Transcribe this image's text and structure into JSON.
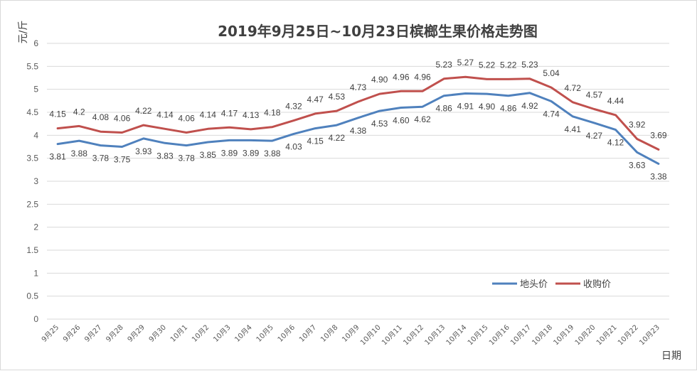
{
  "chart_data": {
    "type": "line",
    "title": "2019年9月25日~10月23日槟榔生果价格走势图",
    "ylabel": "元/斤",
    "xlabel": "日期",
    "ylim": [
      0,
      6
    ],
    "yticks": [
      "0",
      "0.5",
      "1",
      "1.5",
      "2",
      "2.5",
      "3",
      "3.5",
      "4",
      "4.5",
      "5",
      "5.5",
      "6"
    ],
    "categories": [
      "9月25",
      "9月26",
      "9月27",
      "9月28",
      "9月29",
      "9月30",
      "10月1",
      "10月2",
      "10月3",
      "10月4",
      "10月5",
      "10月6",
      "10月7",
      "10月8",
      "10月9",
      "10月10",
      "10月11",
      "10月12",
      "10月13",
      "10月14",
      "10月15",
      "10月16",
      "10月17",
      "10月18",
      "10月19",
      "10月20",
      "10月21",
      "10月22",
      "10月23"
    ],
    "series": [
      {
        "name": "地头价",
        "color": "#4f81bd",
        "values": [
          3.81,
          3.88,
          3.78,
          3.75,
          3.93,
          3.83,
          3.78,
          3.85,
          3.89,
          3.89,
          3.88,
          4.03,
          4.15,
          4.22,
          4.38,
          4.53,
          4.6,
          4.62,
          4.86,
          4.91,
          4.9,
          4.86,
          4.92,
          4.74,
          4.41,
          4.27,
          4.12,
          3.63,
          3.38
        ],
        "labels": [
          "3.81",
          "3.88",
          "3.78",
          "3.75",
          "3.93",
          "3.83",
          "3.78",
          "3.85",
          "3.89",
          "3.89",
          "3.88",
          "4.03",
          "4.15",
          "4.22",
          "4.38",
          "4.53",
          "4.60",
          "4.62",
          "4.86",
          "4.91",
          "4.90",
          "4.86",
          "4.92",
          "4.74",
          "4.41",
          "4.27",
          "4.12",
          "3.63",
          "3.38"
        ]
      },
      {
        "name": "收购价",
        "color": "#c0504d",
        "values": [
          4.15,
          4.2,
          4.08,
          4.06,
          4.22,
          4.14,
          4.06,
          4.14,
          4.17,
          4.13,
          4.18,
          4.32,
          4.47,
          4.53,
          4.73,
          4.9,
          4.96,
          4.96,
          5.23,
          5.27,
          5.22,
          5.22,
          5.23,
          5.04,
          4.72,
          4.57,
          4.44,
          3.92,
          3.69
        ],
        "labels": [
          "4.15",
          "4.2",
          "4.08",
          "4.06",
          "4.22",
          "4.14",
          "4.06",
          "4.14",
          "4.17",
          "4.13",
          "4.18",
          "4.32",
          "4.47",
          "4.53",
          "4.73",
          "4.90",
          "4.96",
          "4.96",
          "5.23",
          "5.27",
          "5.22",
          "5.22",
          "5.23",
          "5.04",
          "4.72",
          "4.57",
          "4.44",
          "3.92",
          "3.69"
        ]
      }
    ],
    "grid": true,
    "legend_position": "bottom-right"
  }
}
